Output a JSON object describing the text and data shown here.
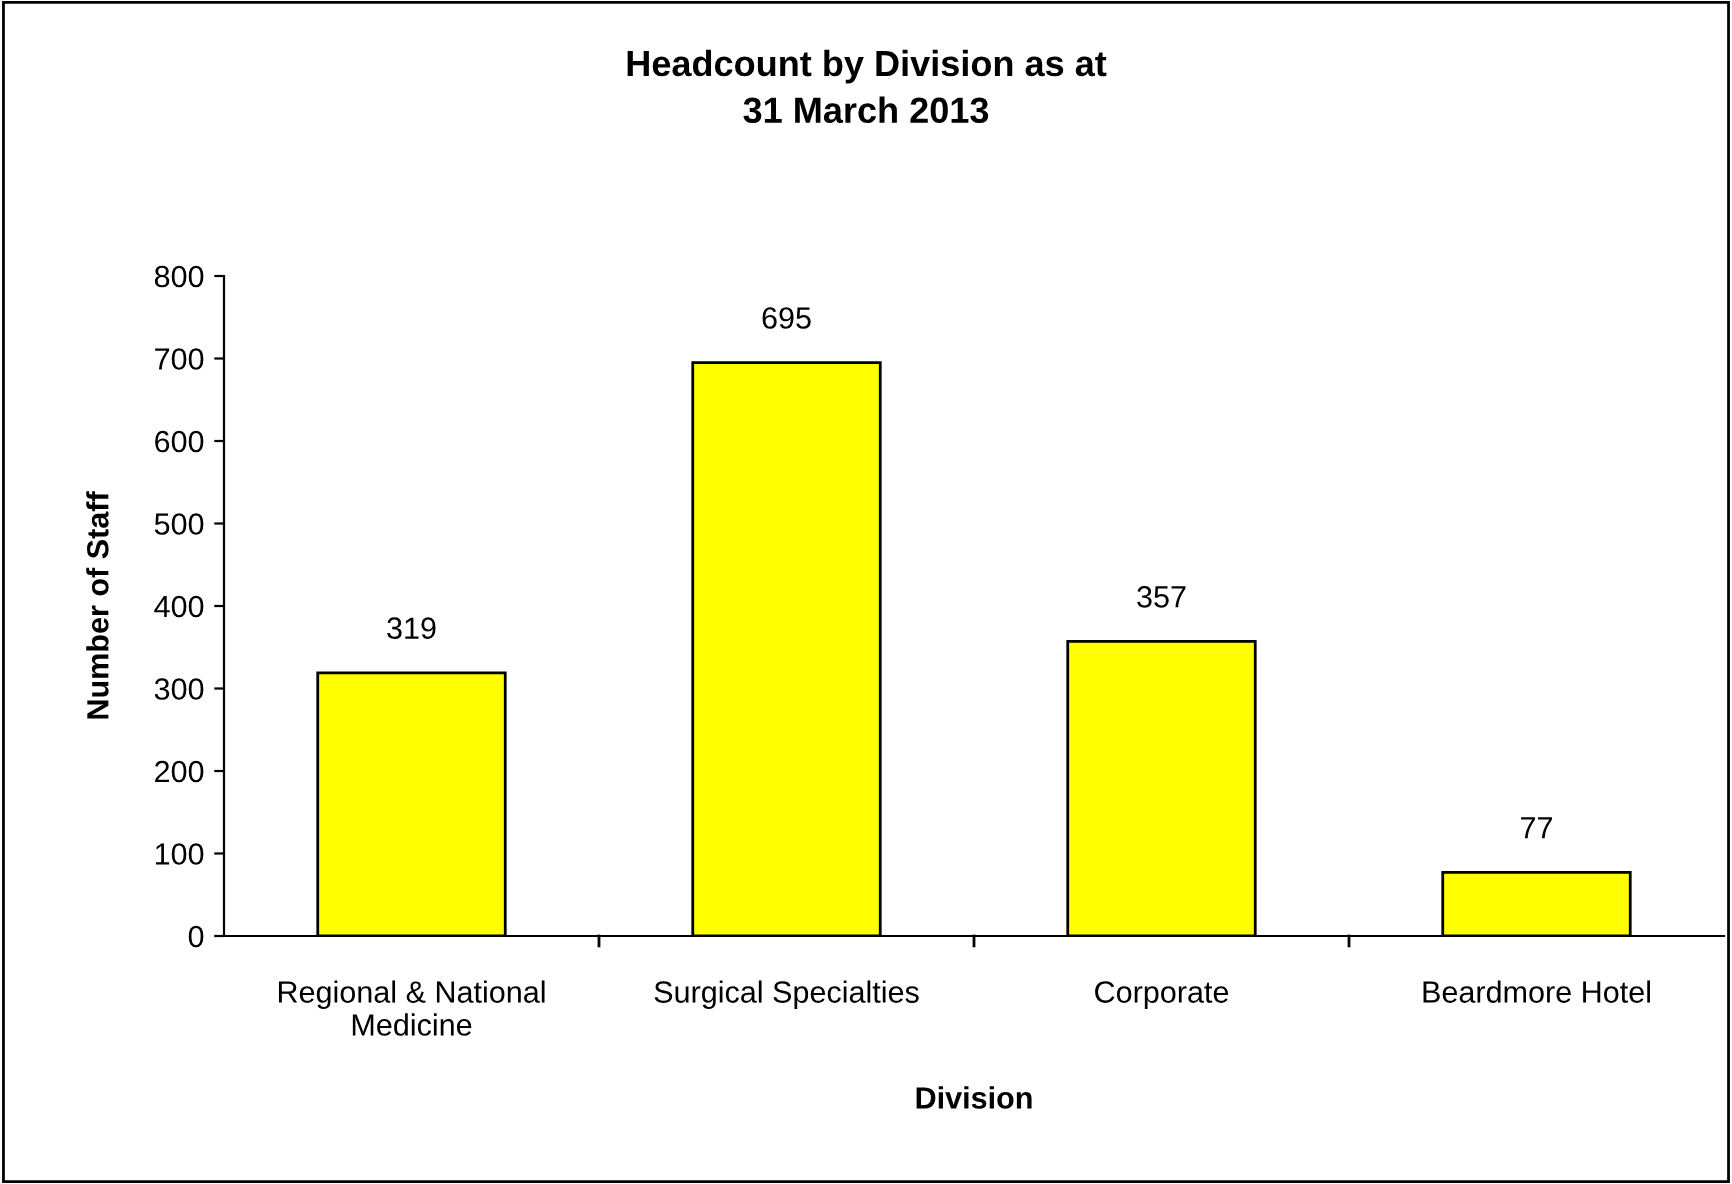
{
  "chart_data": {
    "type": "bar",
    "title": "Headcount by Division as at\n31 March 2013",
    "xlabel": "Division",
    "ylabel": "Number of Staff",
    "categories": [
      "Regional & National\nMedicine",
      "Surgical Specialties",
      "Corporate",
      "Beardmore Hotel"
    ],
    "values": [
      319,
      695,
      357,
      77
    ],
    "color": "#ffff00",
    "ylim": [
      0,
      800
    ],
    "yticks": [
      0,
      100,
      200,
      300,
      400,
      500,
      600,
      700,
      800
    ],
    "grid": false,
    "data_labels": true
  }
}
